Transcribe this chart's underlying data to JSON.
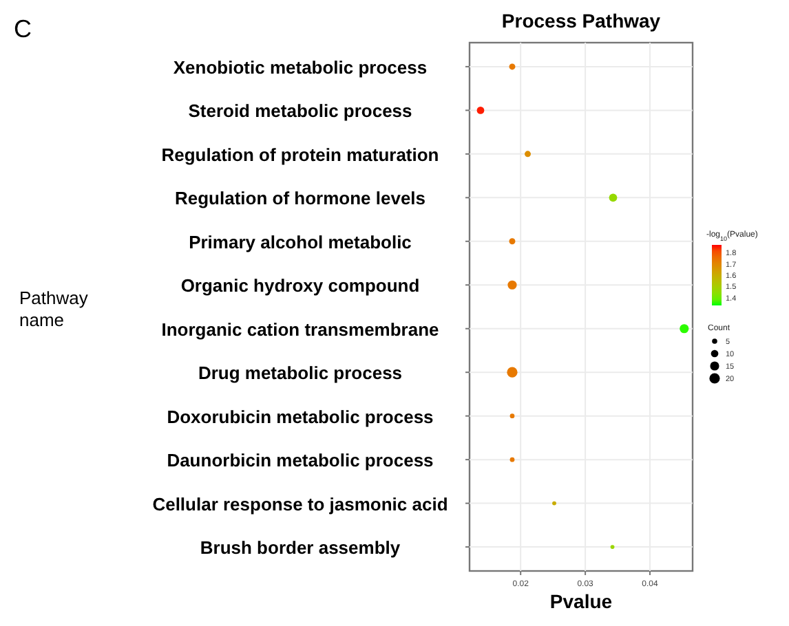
{
  "chart_data": {
    "type": "bubble",
    "title": "Process Pathway",
    "xlabel": "Pvalue",
    "ylabel": "Pathway name",
    "annotations": [
      "C"
    ],
    "categories": [
      "Xenobiotic metabolic process",
      "Steroid metabolic process",
      "Regulation of protein maturation",
      "Regulation of hormone levels",
      "Primary alcohol metabolic",
      "Organic hydroxy compound",
      "Inorganic cation transmembrane",
      "Drug metabolic process",
      "Doxorubicin metabolic process",
      "Daunorbicin metabolic process",
      "Cellular response to jasmonic acid",
      "Brush border assembly"
    ],
    "values": [
      0.0187,
      0.0138,
      0.0211,
      0.0343,
      0.0187,
      0.0187,
      0.0453,
      0.0187,
      0.0187,
      0.0187,
      0.0252,
      0.0342
    ],
    "sizes": [
      7,
      10,
      7,
      12,
      7,
      15,
      15,
      20,
      4,
      4,
      3,
      3
    ],
    "cvalues": [
      1.73,
      1.86,
      1.68,
      1.46,
      1.73,
      1.73,
      1.34,
      1.73,
      1.73,
      1.73,
      1.6,
      1.47
    ],
    "orientation": "horizontal",
    "xlim": [
      0.0121,
      0.0466
    ],
    "xticks": [
      0.02,
      0.03,
      0.04
    ],
    "clabel": "-log$_{10}$(Pvalue)",
    "clim": [
      1.33,
      1.87
    ],
    "cticks": [
      1.4,
      1.5,
      1.6,
      1.7,
      1.8
    ],
    "legend_title": "Count",
    "size_legend": [
      5,
      10,
      15,
      20
    ],
    "grid": true
  }
}
